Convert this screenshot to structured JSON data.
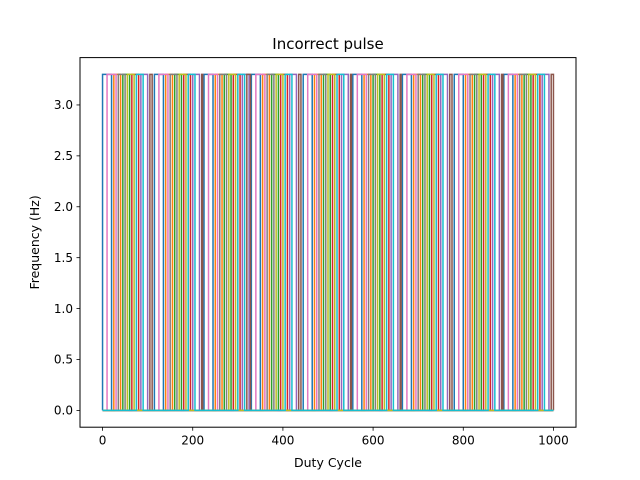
{
  "chart_data": {
    "type": "line",
    "title": "Incorrect pulse",
    "xlabel": "Duty Cycle",
    "ylabel": "Frequency (Hz)",
    "xlim": [
      -50,
      1050
    ],
    "ylim": [
      -0.165,
      3.465
    ],
    "xticks": [
      0,
      200,
      400,
      600,
      800,
      1000
    ],
    "xtick_labels": [
      "0",
      "200",
      "400",
      "600",
      "800",
      "1000"
    ],
    "yticks": [
      0.0,
      0.5,
      1.0,
      1.5,
      2.0,
      2.5,
      3.0
    ],
    "ytick_labels": [
      "0.0",
      "0.5",
      "1.0",
      "1.5",
      "2.0",
      "2.5",
      "3.0"
    ],
    "grid": false,
    "legend": "none",
    "pulse_low": 0,
    "pulse_high": 3.3,
    "series": [
      {
        "color": "#1f77b4",
        "rises": [
          0,
          115,
          225,
          330,
          445,
          555,
          665,
          780,
          890
        ],
        "falls": [
          20,
          135,
          245,
          350,
          465,
          575,
          685,
          800,
          910
        ]
      },
      {
        "color": "#ff7f0e",
        "rises": [
          25,
          140,
          250,
          355,
          470,
          580,
          690,
          805,
          915
        ],
        "falls": [
          40,
          155,
          265,
          370,
          485,
          595,
          705,
          820,
          930
        ]
      },
      {
        "color": "#2ca02c",
        "rises": [
          45,
          160,
          270,
          375,
          490,
          600,
          710,
          825,
          935
        ],
        "falls": [
          60,
          175,
          285,
          390,
          505,
          615,
          725,
          840,
          950
        ]
      },
      {
        "color": "#d62728",
        "rises": [
          65,
          180,
          290,
          395,
          510,
          620,
          730,
          845,
          955
        ],
        "falls": [
          80,
          195,
          305,
          410,
          525,
          635,
          745,
          860,
          970
        ]
      },
      {
        "color": "#9467bd",
        "rises": [
          85,
          200,
          310,
          415,
          530,
          640,
          750,
          865,
          975
        ],
        "falls": [
          100,
          215,
          325,
          430,
          545,
          655,
          765,
          880,
          990
        ]
      },
      {
        "color": "#8c564b",
        "rises": [
          105,
          220,
          320,
          435,
          550,
          660,
          770,
          885,
          995
        ],
        "falls": [
          110,
          222,
          328,
          440,
          552,
          662,
          775,
          888,
          1000
        ]
      },
      {
        "color": "#e377c2",
        "rises": [
          10,
          125,
          235,
          340,
          455,
          565,
          675,
          790,
          900
        ],
        "falls": [
          30,
          145,
          255,
          360,
          475,
          585,
          695,
          810,
          920
        ]
      },
      {
        "color": "#7f7f7f",
        "rises": [
          35,
          150,
          260,
          365,
          480,
          590,
          700,
          815,
          925
        ],
        "falls": [
          50,
          165,
          275,
          380,
          495,
          605,
          715,
          830,
          940
        ]
      },
      {
        "color": "#bcbd22",
        "rises": [
          55,
          170,
          280,
          385,
          500,
          610,
          720,
          835,
          945
        ],
        "falls": [
          70,
          185,
          295,
          400,
          515,
          625,
          735,
          850,
          960
        ]
      },
      {
        "color": "#17becf",
        "rises": [
          75,
          190,
          300,
          405,
          520,
          630,
          740,
          855,
          965
        ],
        "falls": [
          90,
          205,
          315,
          420,
          535,
          645,
          755,
          870,
          980
        ]
      }
    ]
  }
}
